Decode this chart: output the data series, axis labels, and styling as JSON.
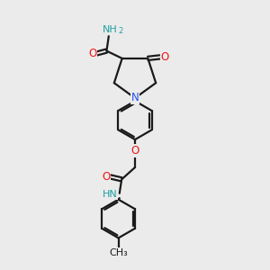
{
  "bg_color": "#ebebeb",
  "bond_color": "#1a1a1a",
  "N_color": "#2050ee",
  "O_color": "#ee1515",
  "H_color": "#20a0a0",
  "line_width": 1.6,
  "font_size": 8.5,
  "fig_size": [
    3.0,
    3.0
  ],
  "dpi": 100,
  "xlim": [
    0,
    10
  ],
  "ylim": [
    0,
    10
  ]
}
